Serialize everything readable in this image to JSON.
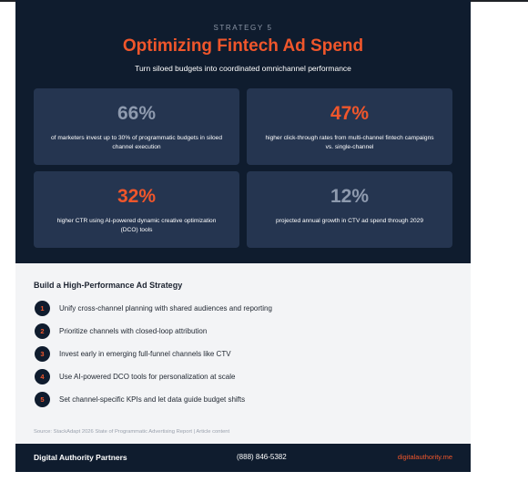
{
  "header": {
    "eyebrow": "STRATEGY 5",
    "title": "Optimizing Fintech Ad Spend",
    "subtitle": "Turn siloed budgets into coordinated omnichannel performance"
  },
  "stats": [
    {
      "value": "66%",
      "desc": "of marketers invest up to 30% of programmatic budgets in siloed channel execution",
      "color": "#8e9aae"
    },
    {
      "value": "47%",
      "desc": "higher click-through rates from multi-channel fintech campaigns vs. single-channel",
      "color": "#f0562b"
    },
    {
      "value": "32%",
      "desc": "higher CTR using AI-powered dynamic creative optimization (DCO) tools",
      "color": "#f0562b"
    },
    {
      "value": "12%",
      "desc": "projected annual growth in CTV ad spend through 2029",
      "color": "#8e9aae"
    }
  ],
  "strategy": {
    "heading": "Build a High-Performance Ad Strategy",
    "steps": [
      {
        "num": "1",
        "text": "Unify cross-channel planning with shared audiences and reporting"
      },
      {
        "num": "2",
        "text": "Prioritize channels with closed-loop attribution"
      },
      {
        "num": "3",
        "text": "Invest early in emerging full-funnel channels like CTV"
      },
      {
        "num": "4",
        "text": "Use AI-powered DCO tools for personalization at scale"
      },
      {
        "num": "5",
        "text": "Set channel-specific KPIs and let data guide budget shifts"
      }
    ],
    "source": "Source: StackAdapt 2026 State of Programmatic Advertising Report | Article content"
  },
  "footer": {
    "brand": "Digital Authority Partners",
    "phone": "(888) 846-5382",
    "website": "digitalauthority.me"
  },
  "colors": {
    "navy": "#0f1c2e",
    "card": "#253550",
    "accent": "#f0562b",
    "muted": "#8e9aae"
  }
}
